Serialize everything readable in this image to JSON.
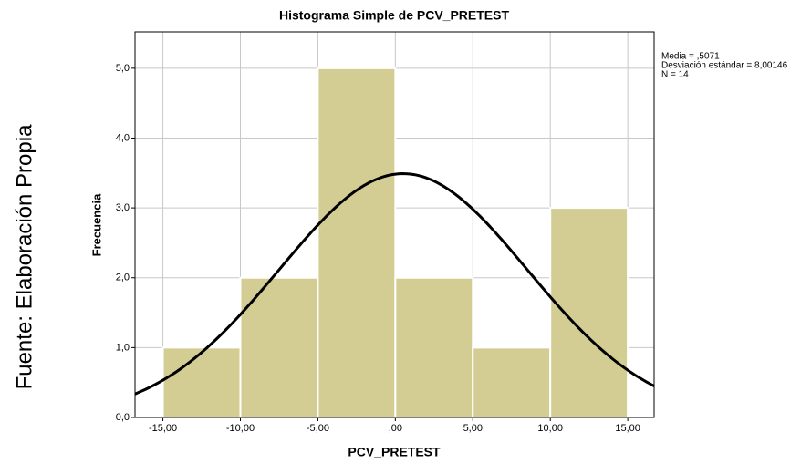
{
  "chart_data": {
    "type": "histogram",
    "title": "Histograma Simple de PCV_PRETEST",
    "xlabel": "PCV_PRETEST",
    "ylabel": "Frecuencia",
    "source": "Fuente: Elaboración Propia",
    "bins": [
      -15,
      -10,
      -5,
      0,
      5,
      10,
      15
    ],
    "counts": [
      1,
      2,
      5,
      2,
      1,
      3
    ],
    "color": "#d3cd93",
    "curve_color": "#000000",
    "xlim": [
      -16.8,
      16.7
    ],
    "ylim": [
      0,
      5.52
    ],
    "xticks": [
      {
        "value": -15,
        "label": "-15,00"
      },
      {
        "value": -10,
        "label": "-10,00"
      },
      {
        "value": -5,
        "label": "-5,00"
      },
      {
        "value": 0,
        "label": ",00"
      },
      {
        "value": 5,
        "label": "5,00"
      },
      {
        "value": 10,
        "label": "10,00"
      },
      {
        "value": 15,
        "label": "15,00"
      }
    ],
    "yticks": [
      {
        "value": 0,
        "label": "0,0"
      },
      {
        "value": 1,
        "label": "1,0"
      },
      {
        "value": 2,
        "label": "2,0"
      },
      {
        "value": 3,
        "label": "3,0"
      },
      {
        "value": 4,
        "label": "4,0"
      },
      {
        "value": 5,
        "label": "5,0"
      }
    ],
    "grid": true,
    "stats": {
      "mean": {
        "value": 0.5071,
        "label": "Media = ,5071"
      },
      "sd": {
        "value": 8.00146,
        "label": "Desviación estándar = 8,00146"
      },
      "n": {
        "value": 14,
        "label": "N = 14"
      }
    }
  }
}
